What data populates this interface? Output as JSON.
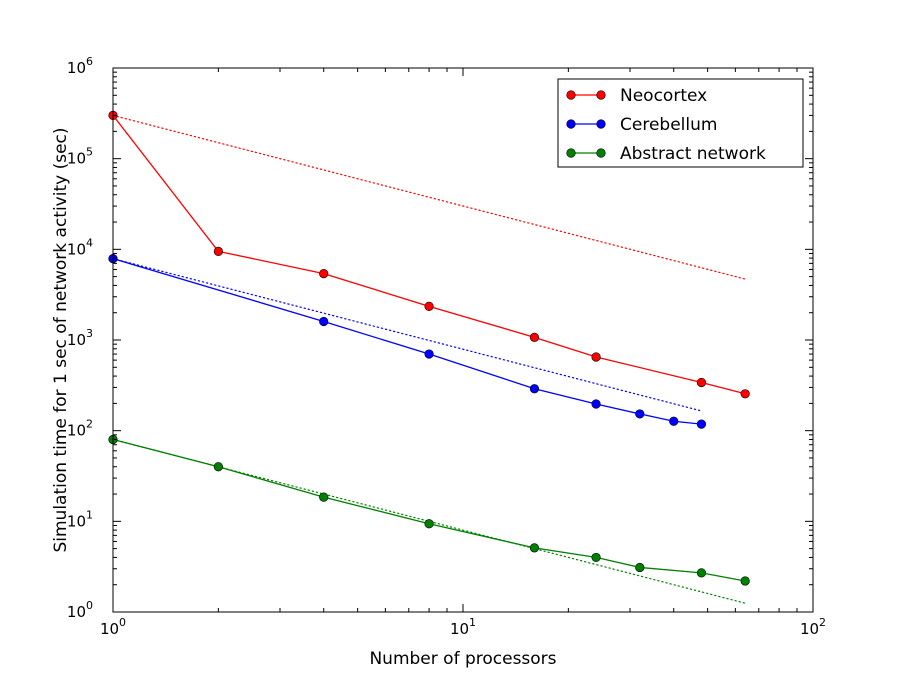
{
  "chart_data": {
    "type": "line",
    "title": "",
    "xlabel": "Number of processors",
    "ylabel": "Simulation time for 1 sec of network activity (sec)",
    "xscale": "log",
    "yscale": "log",
    "xlim": [
      1,
      100
    ],
    "ylim": [
      1,
      1000000
    ],
    "x_ticks": [
      {
        "value": 1,
        "base": "10",
        "exp": "0"
      },
      {
        "value": 10,
        "base": "10",
        "exp": "1"
      },
      {
        "value": 100,
        "base": "10",
        "exp": "2"
      }
    ],
    "y_ticks": [
      {
        "value": 1,
        "base": "10",
        "exp": "0"
      },
      {
        "value": 10,
        "base": "10",
        "exp": "1"
      },
      {
        "value": 100,
        "base": "10",
        "exp": "2"
      },
      {
        "value": 1000,
        "base": "10",
        "exp": "3"
      },
      {
        "value": 10000,
        "base": "10",
        "exp": "4"
      },
      {
        "value": 100000,
        "base": "10",
        "exp": "5"
      },
      {
        "value": 1000000,
        "base": "10",
        "exp": "6"
      }
    ],
    "grid": false,
    "legend_position": "top-right",
    "series": [
      {
        "name": "Neocortex",
        "color": "#ff0000",
        "marker": "circle",
        "x": [
          1,
          2,
          4,
          8,
          16,
          24,
          48,
          64
        ],
        "y": [
          300000,
          9500,
          5400,
          2350,
          1070,
          650,
          340,
          255
        ]
      },
      {
        "name": "Cerebellum",
        "color": "#0000ff",
        "marker": "circle",
        "x": [
          1,
          4,
          8,
          16,
          24,
          32,
          40,
          48
        ],
        "y": [
          7900,
          1600,
          700,
          290,
          197,
          153,
          127,
          118
        ]
      },
      {
        "name": "Abstract network",
        "color": "#008000",
        "marker": "circle",
        "x": [
          1,
          2,
          4,
          8,
          16,
          24,
          32,
          48,
          64
        ],
        "y": [
          80,
          40,
          18.5,
          9.4,
          5.1,
          4.0,
          3.1,
          2.7,
          2.2
        ]
      }
    ],
    "ideal_lines": [
      {
        "series": "Neocortex",
        "color": "#ff0000",
        "style": "dotted",
        "x": [
          1,
          64
        ],
        "y": [
          300000,
          4700
        ]
      },
      {
        "series": "Cerebellum",
        "color": "#0000ff",
        "style": "dotted",
        "x": [
          1,
          48
        ],
        "y": [
          7900,
          165
        ]
      },
      {
        "series": "Abstract network",
        "color": "#008000",
        "style": "dotted",
        "x": [
          1,
          64
        ],
        "y": [
          80,
          1.25
        ]
      }
    ]
  }
}
